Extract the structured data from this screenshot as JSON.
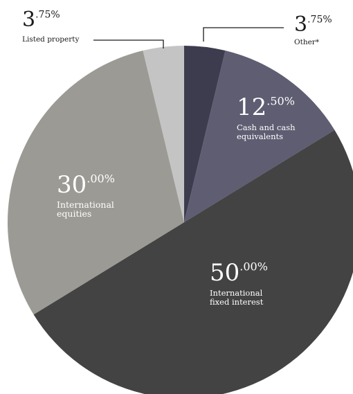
{
  "chart_data": {
    "type": "pie",
    "start_angle_deg": 0,
    "direction": "clockwise",
    "slices": [
      {
        "key": "other",
        "label": "Other*",
        "label_lines": [
          "Other*"
        ],
        "value": 3.75,
        "whole": "3",
        "decimal": ".75%",
        "color": "#3d3c4f",
        "label_position": "outside"
      },
      {
        "key": "cash",
        "label": "Cash and cash equivalents",
        "label_lines": [
          "Cash and cash",
          "equivalents"
        ],
        "value": 12.5,
        "whole": "12",
        "decimal": ".50%",
        "color": "#5e5d72",
        "label_position": "inside"
      },
      {
        "key": "fixed",
        "label": "International fixed interest",
        "label_lines": [
          "International",
          "fixed interest"
        ],
        "value": 50.0,
        "whole": "50",
        "decimal": ".00%",
        "color": "#434343",
        "label_position": "inside"
      },
      {
        "key": "equities",
        "label": "International equities",
        "label_lines": [
          "International",
          "equities"
        ],
        "value": 30.0,
        "whole": "30",
        "decimal": ".00%",
        "color": "#9b9a94",
        "label_position": "inside"
      },
      {
        "key": "property",
        "label": "Listed property",
        "label_lines": [
          "Listed property"
        ],
        "value": 3.75,
        "whole": "3",
        "decimal": ".75%",
        "color": "#c4c4c4",
        "label_position": "outside"
      }
    ]
  }
}
